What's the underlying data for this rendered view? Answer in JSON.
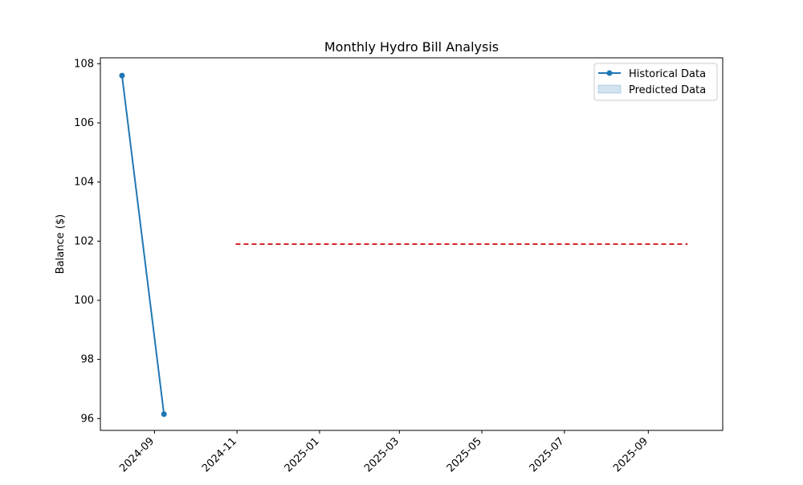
{
  "chart_data": {
    "type": "line",
    "title": "Monthly Hydro Bill Analysis",
    "xlabel": "",
    "ylabel": "Balance ($)",
    "xlim": [
      "2024-07-23",
      "2025-10-26"
    ],
    "ylim": [
      95.6,
      108.2
    ],
    "x_ticks": [
      "2024-09",
      "2024-11",
      "2025-01",
      "2025-03",
      "2025-05",
      "2025-07",
      "2025-09"
    ],
    "y_ticks": [
      96,
      98,
      100,
      102,
      104,
      106,
      108
    ],
    "grid": false,
    "legend_position": "top-right",
    "series": [
      {
        "name": "Historical Data",
        "style": "line-with-markers",
        "color": "#1f77b4",
        "x": [
          "2024-08-08",
          "2024-09-08"
        ],
        "y": [
          107.6,
          96.15
        ]
      },
      {
        "name": "Predicted Data",
        "style": "band",
        "color": "#1f77b4",
        "x": [],
        "y": []
      }
    ],
    "reference_lines": [
      {
        "style": "dashed",
        "color": "#d62728",
        "x": [
          "2024-10-31",
          "2025-09-30"
        ],
        "y": [
          101.9,
          101.9
        ]
      }
    ]
  }
}
